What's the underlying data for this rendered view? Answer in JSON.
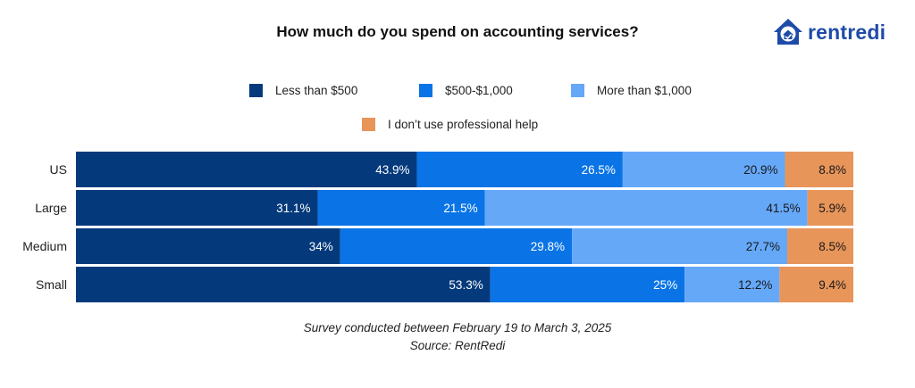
{
  "brand": {
    "name": "rentredi",
    "colors": {
      "text": "#1e4ba8",
      "mark": "#1e4ba8"
    }
  },
  "chart_data": {
    "type": "bar",
    "orientation": "horizontal",
    "stacked": true,
    "title": "How much do you spend on accounting services?",
    "categories": [
      "US",
      "Large",
      "Medium",
      "Small"
    ],
    "series": [
      {
        "name": "Less than $500",
        "color": "#043a7c",
        "values": [
          43.9,
          31.1,
          34,
          53.3
        ],
        "labels": [
          "43.9%",
          "31.1%",
          "34%",
          "53.3%"
        ]
      },
      {
        "name": "$500-$1,000",
        "color": "#0a74e6",
        "values": [
          26.5,
          21.5,
          29.8,
          25
        ],
        "labels": [
          "26.5%",
          "21.5%",
          "29.8%",
          "25%"
        ]
      },
      {
        "name": "More than $1,000",
        "color": "#65a8f8",
        "values": [
          20.9,
          41.5,
          27.7,
          12.2
        ],
        "labels": [
          "20.9%",
          "41.5%",
          "27.7%",
          "12.2%"
        ]
      },
      {
        "name": "I don’t use professional help",
        "color": "#e8955a",
        "values": [
          8.8,
          5.9,
          8.5,
          9.4
        ],
        "labels": [
          "8.8%",
          "5.9%",
          "8.5%",
          "9.4%"
        ]
      }
    ],
    "xlim": [
      0,
      100
    ],
    "legend": "top-center",
    "grid": false
  },
  "footnotes": {
    "survey": "Survey conducted between February 19 to March 3, 2025",
    "source": "Source: RentRedi"
  }
}
